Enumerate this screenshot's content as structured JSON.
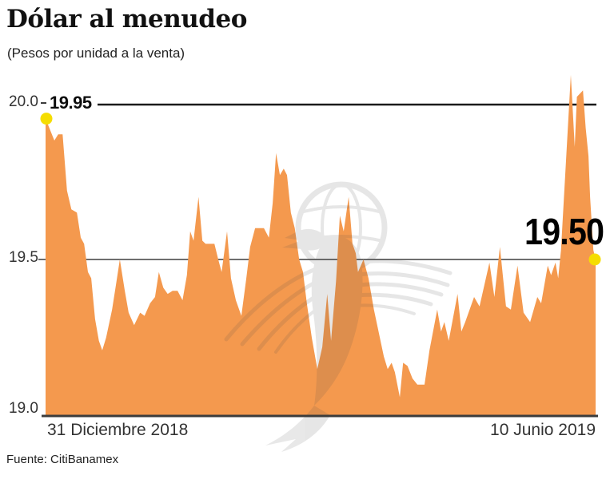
{
  "title": "Dólar al menudeo",
  "subtitle": "(Pesos por unidad a la venta)",
  "source": "Fuente: CitiBanamex",
  "watermark_icon": "el-universal-eagle-globe",
  "chart_data": {
    "type": "area",
    "title": "Dólar al menudeo",
    "ylabel": "Pesos por unidad a la venta",
    "x_start_label": "31 Diciembre 2018",
    "x_end_label": "10 Junio 2019",
    "ylim": [
      19.0,
      20.1
    ],
    "grid": "single horizontal gridline at 19.5; annotation rule at top",
    "legend": false,
    "yticks": [
      {
        "value": 20.0,
        "label": "20.0"
      },
      {
        "value": 19.5,
        "label": "19.5"
      },
      {
        "value": 19.0,
        "label": "19.0"
      }
    ],
    "annotations": {
      "start": {
        "label": "19.95",
        "value": 19.95,
        "x_label": "31 Diciembre 2018"
      },
      "end": {
        "label": "19.50",
        "value": 19.5,
        "x_label": "10 Junio 2019"
      }
    },
    "colors": {
      "area": "#F4994E",
      "marker": "#F5DD00",
      "refline_dark": "#1A1A1A",
      "refline_gray": "#6E6E6E",
      "axis": "#3C3C3C",
      "text": "#1A1A1A",
      "watermark": "#4A4A4A"
    },
    "series": [
      {
        "name": "Dólar al menudeo (venta)",
        "color": "#F4994E",
        "points_x_fraction_value": [
          [
            0.0,
            19.95
          ],
          [
            0.016,
            19.88
          ],
          [
            0.023,
            19.9
          ],
          [
            0.031,
            19.9
          ],
          [
            0.039,
            19.72
          ],
          [
            0.047,
            19.66
          ],
          [
            0.057,
            19.65
          ],
          [
            0.064,
            19.57
          ],
          [
            0.07,
            19.55
          ],
          [
            0.077,
            19.46
          ],
          [
            0.083,
            19.44
          ],
          [
            0.09,
            19.31
          ],
          [
            0.097,
            19.24
          ],
          [
            0.103,
            19.21
          ],
          [
            0.11,
            19.25
          ],
          [
            0.121,
            19.34
          ],
          [
            0.128,
            19.42
          ],
          [
            0.135,
            19.5
          ],
          [
            0.144,
            19.4
          ],
          [
            0.151,
            19.33
          ],
          [
            0.161,
            19.29
          ],
          [
            0.172,
            19.33
          ],
          [
            0.18,
            19.32
          ],
          [
            0.19,
            19.36
          ],
          [
            0.199,
            19.38
          ],
          [
            0.206,
            19.46
          ],
          [
            0.214,
            19.41
          ],
          [
            0.222,
            19.39
          ],
          [
            0.231,
            19.4
          ],
          [
            0.24,
            19.4
          ],
          [
            0.249,
            19.37
          ],
          [
            0.257,
            19.45
          ],
          [
            0.263,
            19.59
          ],
          [
            0.269,
            19.56
          ],
          [
            0.278,
            19.7
          ],
          [
            0.285,
            19.56
          ],
          [
            0.291,
            19.55
          ],
          [
            0.307,
            19.55
          ],
          [
            0.314,
            19.5
          ],
          [
            0.32,
            19.46
          ],
          [
            0.33,
            19.59
          ],
          [
            0.337,
            19.44
          ],
          [
            0.346,
            19.37
          ],
          [
            0.356,
            19.32
          ],
          [
            0.365,
            19.44
          ],
          [
            0.372,
            19.54
          ],
          [
            0.381,
            19.6
          ],
          [
            0.397,
            19.6
          ],
          [
            0.406,
            19.57
          ],
          [
            0.413,
            19.68
          ],
          [
            0.419,
            19.84
          ],
          [
            0.426,
            19.77
          ],
          [
            0.433,
            19.79
          ],
          [
            0.439,
            19.77
          ],
          [
            0.446,
            19.65
          ],
          [
            0.453,
            19.6
          ],
          [
            0.461,
            19.5
          ],
          [
            0.468,
            19.46
          ],
          [
            0.475,
            19.36
          ],
          [
            0.484,
            19.25
          ],
          [
            0.494,
            19.15
          ],
          [
            0.503,
            19.22
          ],
          [
            0.512,
            19.39
          ],
          [
            0.519,
            19.24
          ],
          [
            0.528,
            19.43
          ],
          [
            0.535,
            19.64
          ],
          [
            0.542,
            19.59
          ],
          [
            0.551,
            19.7
          ],
          [
            0.558,
            19.55
          ],
          [
            0.564,
            19.52
          ],
          [
            0.568,
            19.46
          ],
          [
            0.578,
            19.5
          ],
          [
            0.587,
            19.44
          ],
          [
            0.597,
            19.34
          ],
          [
            0.615,
            19.19
          ],
          [
            0.622,
            19.15
          ],
          [
            0.629,
            19.17
          ],
          [
            0.635,
            19.14
          ],
          [
            0.644,
            19.06
          ],
          [
            0.65,
            19.17
          ],
          [
            0.658,
            19.16
          ],
          [
            0.667,
            19.12
          ],
          [
            0.676,
            19.1
          ],
          [
            0.689,
            19.1
          ],
          [
            0.698,
            19.21
          ],
          [
            0.712,
            19.34
          ],
          [
            0.719,
            19.27
          ],
          [
            0.725,
            19.3
          ],
          [
            0.733,
            19.24
          ],
          [
            0.749,
            19.39
          ],
          [
            0.756,
            19.27
          ],
          [
            0.763,
            19.3
          ],
          [
            0.779,
            19.38
          ],
          [
            0.789,
            19.35
          ],
          [
            0.807,
            19.49
          ],
          [
            0.816,
            19.38
          ],
          [
            0.826,
            19.54
          ],
          [
            0.837,
            19.35
          ],
          [
            0.846,
            19.34
          ],
          [
            0.858,
            19.48
          ],
          [
            0.869,
            19.33
          ],
          [
            0.881,
            19.3
          ],
          [
            0.894,
            19.38
          ],
          [
            0.901,
            19.36
          ],
          [
            0.913,
            19.48
          ],
          [
            0.919,
            19.45
          ],
          [
            0.927,
            19.49
          ],
          [
            0.932,
            19.44
          ],
          [
            0.937,
            19.53
          ],
          [
            0.945,
            19.78
          ],
          [
            0.955,
            20.09
          ],
          [
            0.962,
            19.86
          ],
          [
            0.966,
            20.02
          ],
          [
            0.977,
            20.04
          ],
          [
            0.982,
            19.92
          ],
          [
            0.987,
            19.83
          ],
          [
            0.99,
            19.7
          ],
          [
            0.996,
            19.53
          ],
          [
            1.0,
            19.5
          ]
        ]
      }
    ]
  }
}
